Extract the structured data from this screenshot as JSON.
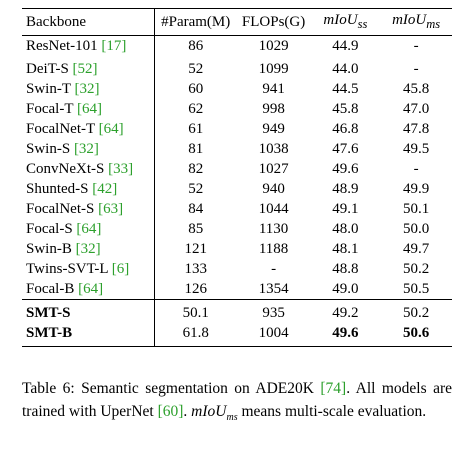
{
  "table": {
    "headers": {
      "backbone": "Backbone",
      "params": "#Param(M)",
      "flops": "FLOPs(G)",
      "miou_ss": "mIoU",
      "miou_ss_sub": "ss",
      "miou_ms": "mIoU",
      "miou_ms_sub": "ms"
    },
    "rows": [
      {
        "name": "ResNet-101",
        "ref": "[17]",
        "params": "86",
        "flops": "1029",
        "ss": "44.9",
        "ms": "-"
      },
      {
        "name": "DeiT-S",
        "ref": "[52]",
        "params": "52",
        "flops": "1099",
        "ss": "44.0",
        "ms": "-"
      },
      {
        "name": "Swin-T",
        "ref": "[32]",
        "params": "60",
        "flops": "941",
        "ss": "44.5",
        "ms": "45.8"
      },
      {
        "name": "Focal-T",
        "ref": "[64]",
        "params": "62",
        "flops": "998",
        "ss": "45.8",
        "ms": "47.0"
      },
      {
        "name": "FocalNet-T",
        "ref": "[64]",
        "params": "61",
        "flops": "949",
        "ss": "46.8",
        "ms": "47.8"
      },
      {
        "name": "Swin-S",
        "ref": "[32]",
        "params": "81",
        "flops": "1038",
        "ss": "47.6",
        "ms": "49.5"
      },
      {
        "name": "ConvNeXt-S",
        "ref": "[33]",
        "params": "82",
        "flops": "1027",
        "ss": "49.6",
        "ms": "-"
      },
      {
        "name": "Shunted-S",
        "ref": "[42]",
        "params": "52",
        "flops": "940",
        "ss": "48.9",
        "ms": "49.9"
      },
      {
        "name": "FocalNet-S",
        "ref": "[63]",
        "params": "84",
        "flops": "1044",
        "ss": "49.1",
        "ms": "50.1"
      },
      {
        "name": "Focal-S",
        "ref": "[64]",
        "params": "85",
        "flops": "1130",
        "ss": "48.0",
        "ms": "50.0"
      },
      {
        "name": "Swin-B",
        "ref": "[32]",
        "params": "121",
        "flops": "1188",
        "ss": "48.1",
        "ms": "49.7"
      },
      {
        "name": "Twins-SVT-L",
        "ref": "[6]",
        "params": "133",
        "flops": "-",
        "ss": "48.8",
        "ms": "50.2"
      },
      {
        "name": "Focal-B",
        "ref": "[64]",
        "params": "126",
        "flops": "1354",
        "ss": "49.0",
        "ms": "50.5"
      }
    ],
    "ours": [
      {
        "name": "SMT-S",
        "params": "50.1",
        "flops": "935",
        "ss": "49.2",
        "ms": "50.2"
      },
      {
        "name": "SMT-B",
        "params": "61.8",
        "flops": "1004",
        "ss": "49.6",
        "ms": "50.6"
      }
    ]
  },
  "caption": {
    "part1": "Table 6:  Semantic segmentation on ADE20K ",
    "ref1": "[74]",
    "part2": ".  All models are trained with UperNet ",
    "ref2": "[60]",
    "part3": ".  ",
    "math": "mIoU",
    "math_sub": "ms",
    "part4": " means multi-scale evaluation."
  },
  "colors": {
    "ref": "#2ca02c",
    "text": "#000000"
  }
}
